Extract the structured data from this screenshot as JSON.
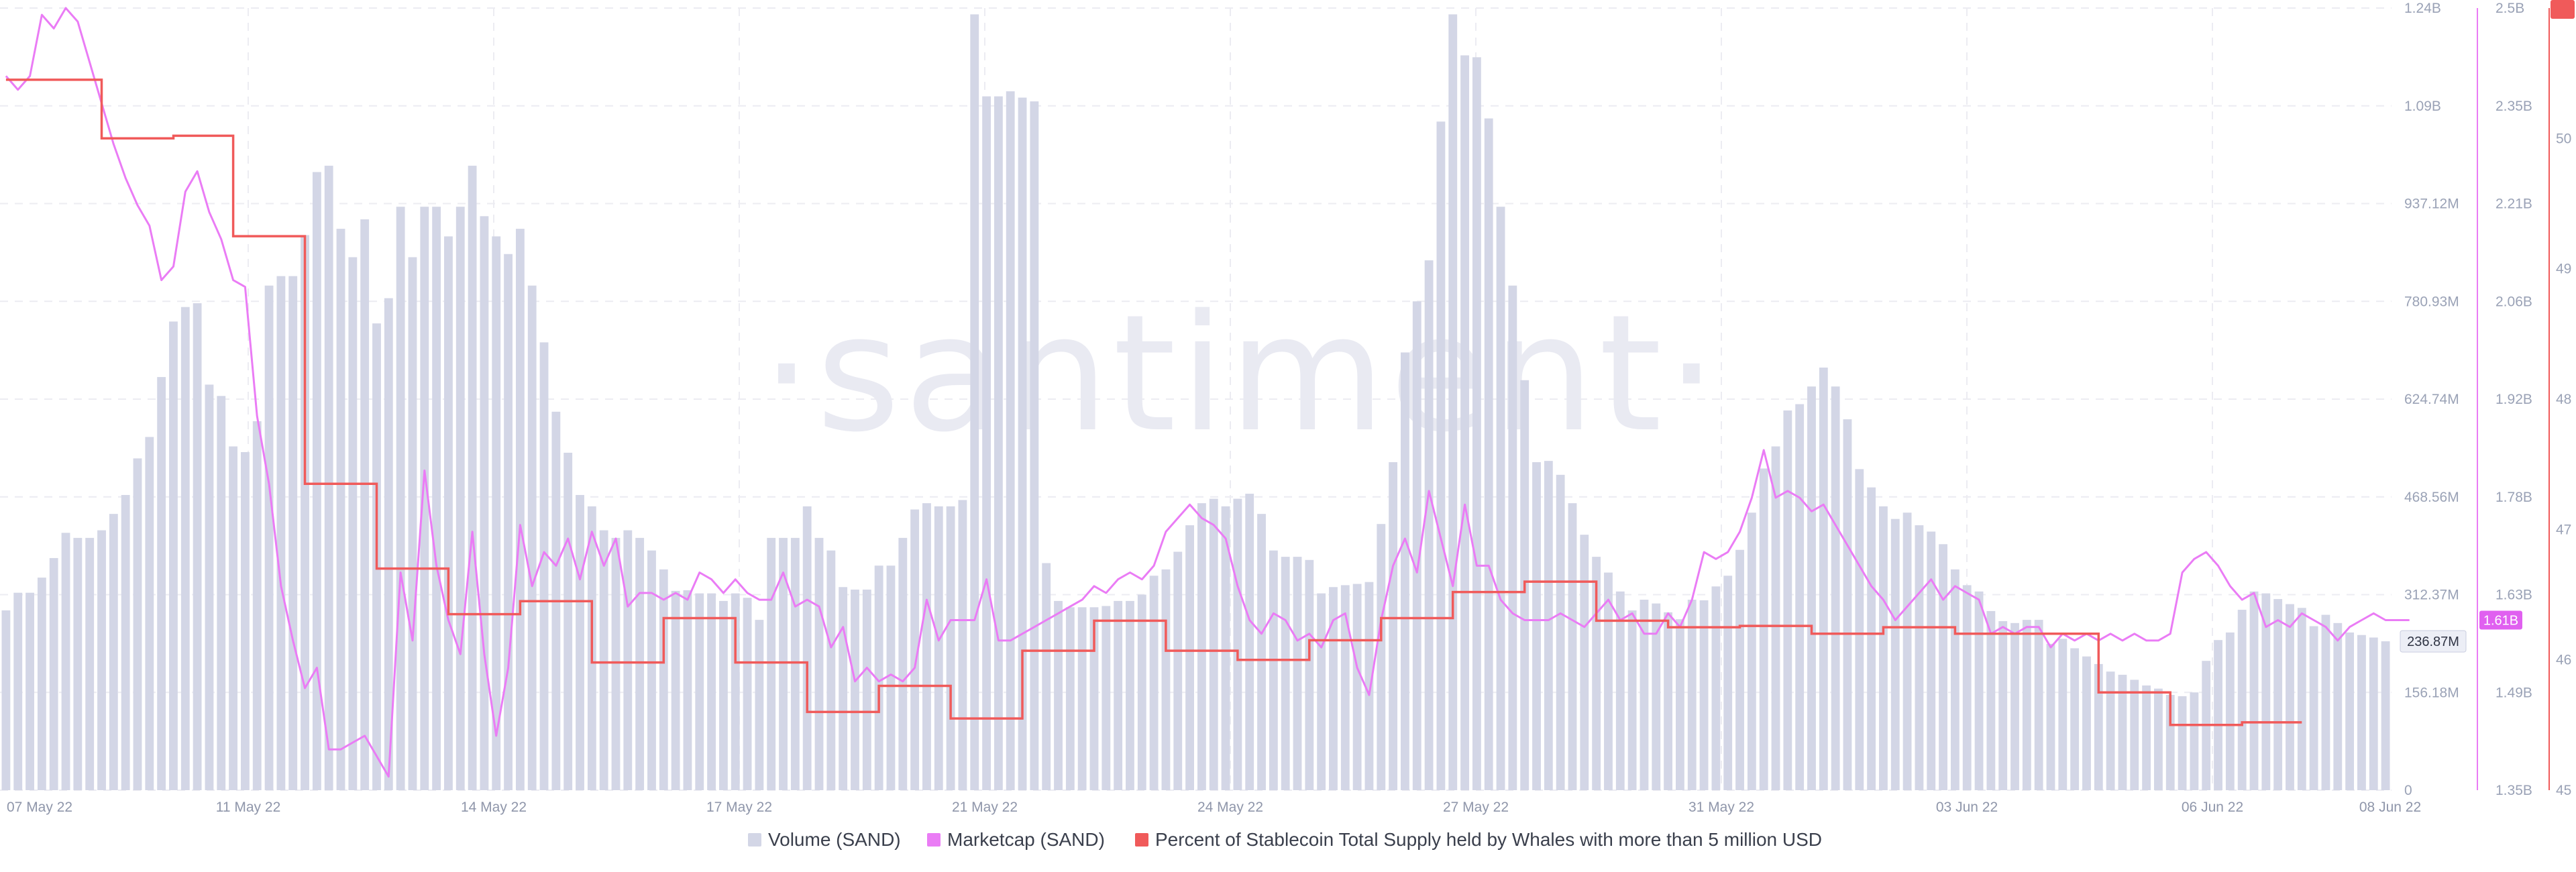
{
  "watermark": "·santiment·",
  "legend": [
    {
      "label": "Volume (SAND)",
      "color": "#d3d6e6"
    },
    {
      "label": "Marketcap (SAND)",
      "color": "#ea7cf5"
    },
    {
      "label": "Percent of Stablecoin Total Supply held by Whales with more than 5 million USD",
      "color": "#f05a5a"
    }
  ],
  "chart_data": {
    "type": "bar+line",
    "x_start": "07 May 22",
    "x_end": "08 Jun 22",
    "x_ticks": [
      "07 May 22",
      "11 May 22",
      "14 May 22",
      "17 May 22",
      "21 May 22",
      "24 May 22",
      "27 May 22",
      "31 May 22",
      "03 Jun 22",
      "06 Jun 22",
      "08 Jun 22"
    ],
    "grid": true,
    "axes": {
      "volume": {
        "ticks": [
          "0",
          "156.18M",
          "312.37M",
          "468.56M",
          "624.74M",
          "780.93M",
          "937.12M",
          "1.09B",
          "1.24B"
        ],
        "ylim": [
          0,
          1240000000
        ],
        "current_label": "236.87M"
      },
      "marketcap": {
        "ticks": [
          "1.35B",
          "1.49B",
          "1.63B",
          "1.78B",
          "1.92B",
          "2.06B",
          "2.21B",
          "2.35B",
          "2.5B"
        ],
        "ylim": [
          1350000000,
          2500000000
        ],
        "current_label": "1.61B"
      },
      "percent": {
        "ticks": [
          "45",
          "46",
          "47",
          "48",
          "49",
          "50",
          "51"
        ],
        "ylim": [
          45,
          51
        ],
        "current_label": "46"
      }
    },
    "series": [
      {
        "name": "Volume (SAND)",
        "kind": "bar",
        "unit": "USD",
        "values": [
          285,
          313,
          313,
          337,
          368,
          408,
          400,
          400,
          412,
          438,
          468,
          526,
          560,
          655,
          743,
          766,
          772,
          643,
          625,
          545,
          536,
          585,
          800,
          815,
          815,
          880,
          980,
          990,
          890,
          845,
          905,
          740,
          780,
          925,
          845,
          925,
          925,
          878,
          925,
          990,
          910,
          878,
          850,
          890,
          800,
          710,
          600,
          535,
          468,
          450,
          412,
          400,
          412,
          400,
          380,
          350,
          316,
          317,
          312,
          312,
          300,
          312,
          305,
          270,
          400,
          400,
          400,
          450,
          400,
          380,
          322,
          318,
          318,
          356,
          356,
          400,
          445,
          455,
          450,
          450,
          460,
          1230,
          1100,
          1100,
          1108,
          1098,
          1092,
          360,
          300,
          290,
          290,
          290,
          292,
          300,
          300,
          310,
          340,
          350,
          378,
          420,
          455,
          462,
          450,
          462,
          470,
          438,
          380,
          370,
          370,
          365,
          312,
          322,
          325,
          327,
          330,
          422,
          520,
          694,
          775,
          840,
          1060,
          1230,
          1165,
          1162,
          1065,
          925,
          800,
          650,
          520,
          522,
          500,
          455,
          405,
          370,
          345,
          315,
          285,
          302,
          296,
          282,
          271,
          302,
          301,
          323,
          340,
          381,
          440,
          510,
          545,
          602,
          612,
          640,
          670,
          640,
          588,
          509,
          480,
          450,
          430,
          440,
          420,
          410,
          390,
          350,
          325,
          315,
          284,
          268,
          265,
          270,
          270,
          232,
          240,
          225,
          212,
          200,
          188,
          183,
          175,
          166,
          161,
          151,
          149,
          155,
          205,
          238,
          250,
          286,
          315,
          312,
          303,
          295,
          289,
          260,
          278,
          265,
          250,
          246,
          242,
          236
        ]
      },
      {
        "name": "Marketcap (SAND)",
        "kind": "line",
        "unit": "USD",
        "values": [
          2.4,
          2.38,
          2.4,
          2.49,
          2.47,
          2.5,
          2.48,
          2.42,
          2.36,
          2.3,
          2.25,
          2.21,
          2.18,
          2.1,
          2.12,
          2.23,
          2.26,
          2.2,
          2.16,
          2.1,
          2.09,
          1.9,
          1.8,
          1.65,
          1.57,
          1.5,
          1.53,
          1.41,
          1.41,
          1.42,
          1.43,
          1.4,
          1.37,
          1.67,
          1.57,
          1.82,
          1.68,
          1.6,
          1.55,
          1.73,
          1.55,
          1.43,
          1.53,
          1.74,
          1.65,
          1.7,
          1.68,
          1.72,
          1.66,
          1.73,
          1.68,
          1.72,
          1.62,
          1.64,
          1.64,
          1.63,
          1.64,
          1.63,
          1.67,
          1.66,
          1.64,
          1.66,
          1.64,
          1.63,
          1.63,
          1.67,
          1.62,
          1.63,
          1.62,
          1.56,
          1.59,
          1.51,
          1.53,
          1.51,
          1.52,
          1.51,
          1.53,
          1.63,
          1.57,
          1.6,
          1.6,
          1.6,
          1.66,
          1.57,
          1.57,
          1.58,
          1.59,
          1.6,
          1.61,
          1.62,
          1.63,
          1.65,
          1.64,
          1.66,
          1.67,
          1.66,
          1.68,
          1.73,
          1.75,
          1.77,
          1.75,
          1.74,
          1.72,
          1.65,
          1.6,
          1.58,
          1.61,
          1.6,
          1.57,
          1.58,
          1.56,
          1.6,
          1.61,
          1.53,
          1.49,
          1.6,
          1.68,
          1.72,
          1.67,
          1.79,
          1.72,
          1.65,
          1.77,
          1.68,
          1.68,
          1.63,
          1.61,
          1.6,
          1.6,
          1.6,
          1.61,
          1.6,
          1.59,
          1.61,
          1.63,
          1.6,
          1.61,
          1.58,
          1.58,
          1.61,
          1.59,
          1.63,
          1.7,
          1.69,
          1.7,
          1.73,
          1.78,
          1.85,
          1.78,
          1.79,
          1.78,
          1.76,
          1.77,
          1.74,
          1.71,
          1.68,
          1.65,
          1.63,
          1.6,
          1.62,
          1.64,
          1.66,
          1.63,
          1.65,
          1.64,
          1.63,
          1.58,
          1.59,
          1.58,
          1.59,
          1.59,
          1.56,
          1.58,
          1.57,
          1.58,
          1.57,
          1.58,
          1.57,
          1.58,
          1.57,
          1.57,
          1.58,
          1.67,
          1.69,
          1.7,
          1.68,
          1.65,
          1.63,
          1.64,
          1.59,
          1.6,
          1.59,
          1.61,
          1.6,
          1.59,
          1.57,
          1.59,
          1.6,
          1.61,
          1.6,
          1.6,
          1.6
        ]
      },
      {
        "name": "Percent of Stablecoin Total Supply held by Whales with more than 5 million USD",
        "kind": "step",
        "unit": "%",
        "values": [
          50.45,
          50.45,
          50.45,
          50.45,
          50.45,
          50.45,
          50.45,
          50.45,
          50.0,
          50.0,
          50.0,
          50.0,
          50.0,
          50.0,
          50.02,
          50.02,
          50.02,
          50.02,
          50.02,
          49.25,
          49.25,
          49.25,
          49.25,
          49.25,
          49.25,
          47.35,
          47.35,
          47.35,
          47.35,
          47.35,
          47.35,
          46.7,
          46.7,
          46.7,
          46.7,
          46.7,
          46.7,
          46.35,
          46.35,
          46.35,
          46.35,
          46.35,
          46.35,
          46.45,
          46.45,
          46.45,
          46.45,
          46.45,
          46.45,
          45.98,
          45.98,
          45.98,
          45.98,
          45.98,
          45.98,
          46.32,
          46.32,
          46.32,
          46.32,
          46.32,
          46.32,
          45.98,
          45.98,
          45.98,
          45.98,
          45.98,
          45.98,
          45.6,
          45.6,
          45.6,
          45.6,
          45.6,
          45.6,
          45.8,
          45.8,
          45.8,
          45.8,
          45.8,
          45.8,
          45.55,
          45.55,
          45.55,
          45.55,
          45.55,
          45.55,
          46.07,
          46.07,
          46.07,
          46.07,
          46.07,
          46.07,
          46.3,
          46.3,
          46.3,
          46.3,
          46.3,
          46.3,
          46.07,
          46.07,
          46.07,
          46.07,
          46.07,
          46.07,
          46.0,
          46.0,
          46.0,
          46.0,
          46.0,
          46.0,
          46.15,
          46.15,
          46.15,
          46.15,
          46.15,
          46.15,
          46.32,
          46.32,
          46.32,
          46.32,
          46.32,
          46.32,
          46.52,
          46.52,
          46.52,
          46.52,
          46.52,
          46.52,
          46.6,
          46.6,
          46.6,
          46.6,
          46.6,
          46.6,
          46.3,
          46.3,
          46.3,
          46.3,
          46.3,
          46.3,
          46.25,
          46.25,
          46.25,
          46.25,
          46.25,
          46.25,
          46.26,
          46.26,
          46.26,
          46.26,
          46.26,
          46.26,
          46.2,
          46.2,
          46.2,
          46.2,
          46.2,
          46.2,
          46.25,
          46.25,
          46.25,
          46.25,
          46.25,
          46.25,
          46.2,
          46.2,
          46.2,
          46.2,
          46.2,
          46.2,
          46.2,
          46.2,
          46.2,
          46.2,
          46.2,
          46.2,
          45.75,
          45.75,
          45.75,
          45.75,
          45.75,
          45.75,
          45.5,
          45.5,
          45.5,
          45.5,
          45.5,
          45.5,
          45.52,
          45.52,
          45.52,
          45.52,
          45.52,
          45.52
        ]
      }
    ]
  }
}
